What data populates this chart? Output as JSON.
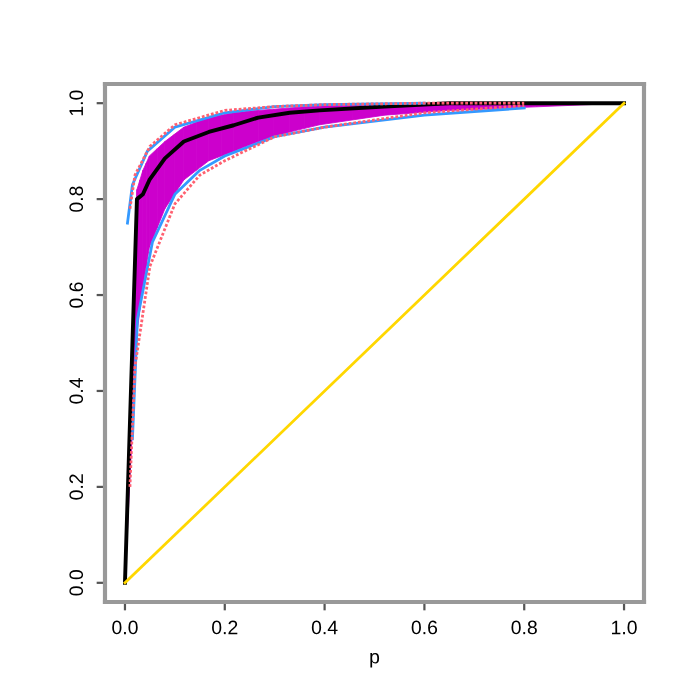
{
  "chart_data": {
    "type": "line",
    "xlabel": "p",
    "xlim": [
      -0.04,
      1.04
    ],
    "ylim": [
      -0.04,
      1.04
    ],
    "xticks": [
      {
        "value": 0,
        "label": "0.0"
      },
      {
        "value": 0.2,
        "label": "0.2"
      },
      {
        "value": 0.4,
        "label": "0.4"
      },
      {
        "value": 0.6,
        "label": "0.6"
      },
      {
        "value": 0.8,
        "label": "0.8"
      },
      {
        "value": 1,
        "label": "1.0"
      }
    ],
    "yticks": [
      {
        "value": 0,
        "label": "0.0"
      },
      {
        "value": 0.2,
        "label": "0.2"
      },
      {
        "value": 0.4,
        "label": "0.4"
      },
      {
        "value": 0.6,
        "label": "0.6"
      },
      {
        "value": 0.8,
        "label": "0.8"
      },
      {
        "value": 1,
        "label": "1.0"
      }
    ],
    "grid": false,
    "marker": "none",
    "series": [
      {
        "type": "line",
        "color": "#ff6070",
        "line_style": "dotted",
        "x": [
          0.01,
          0.02,
          0.05,
          0.1,
          0.2,
          0.3,
          0.4,
          0.6,
          0.8
        ],
        "values": [
          0.78,
          0.85,
          0.91,
          0.955,
          0.985,
          0.993,
          0.997,
          1,
          1
        ]
      },
      {
        "type": "line",
        "color": "#ff6070",
        "line_style": "dotted",
        "x": [
          0.01,
          0.02,
          0.05,
          0.1,
          0.15,
          0.2,
          0.3,
          0.4,
          0.6,
          0.8
        ],
        "values": [
          0.2,
          0.45,
          0.66,
          0.79,
          0.85,
          0.88,
          0.93,
          0.95,
          0.98,
          0.995
        ]
      },
      {
        "type": "line",
        "color": "#3399ff",
        "line_style": "solid",
        "x": [
          0.015,
          0.025,
          0.055,
          0.1,
          0.15,
          0.2,
          0.3,
          0.4,
          0.6,
          0.8
        ],
        "values": [
          0.3,
          0.55,
          0.71,
          0.81,
          0.86,
          0.89,
          0.93,
          0.95,
          0.975,
          0.99
        ]
      },
      {
        "type": "line",
        "color": "#3399ff",
        "line_style": "solid",
        "x": [
          0.005,
          0.015,
          0.045,
          0.1,
          0.2,
          0.3,
          0.4,
          0.6
        ],
        "values": [
          0.75,
          0.83,
          0.9,
          0.95,
          0.98,
          0.993,
          0.997,
          1
        ]
      },
      {
        "type": "line",
        "color": "#ffd700",
        "line_style": "solid",
        "x": [
          0,
          1
        ],
        "values": [
          0,
          1
        ]
      },
      {
        "color": "#000000",
        "colors": [
          "#cc00cc",
          "#cc00cc",
          "#cc00cc",
          "#cc00cc",
          "#cc00cc",
          "#cc00cc",
          "#cc00cc",
          "#cc00cc",
          "#cc00cc",
          "#cc00cc",
          "#cc00cc",
          "#cc00cc",
          "#cc00cc",
          "#cc00cc"
        ],
        "lower": [
          0,
          0.52,
          0.62,
          0.7,
          0.78,
          0.84,
          0.88,
          0.9,
          0.92,
          0.94,
          0.955,
          0.975,
          0.985,
          1
        ],
        "upper": [
          0,
          0.82,
          0.86,
          0.89,
          0.92,
          0.95,
          0.97,
          0.98,
          0.985,
          0.99,
          0.995,
          0.998,
          1,
          1
        ],
        "line_style": "solid",
        "x": [
          0,
          0.024,
          0.036,
          0.049,
          0.08,
          0.118,
          0.168,
          0.218,
          0.267,
          0.33,
          0.39,
          0.52,
          0.65,
          1
        ],
        "values": [
          0,
          0.8,
          0.81,
          0.84,
          0.885,
          0.92,
          0.94,
          0.954,
          0.97,
          0.98,
          0.985,
          0.993,
          1,
          1
        ]
      }
    ]
  }
}
